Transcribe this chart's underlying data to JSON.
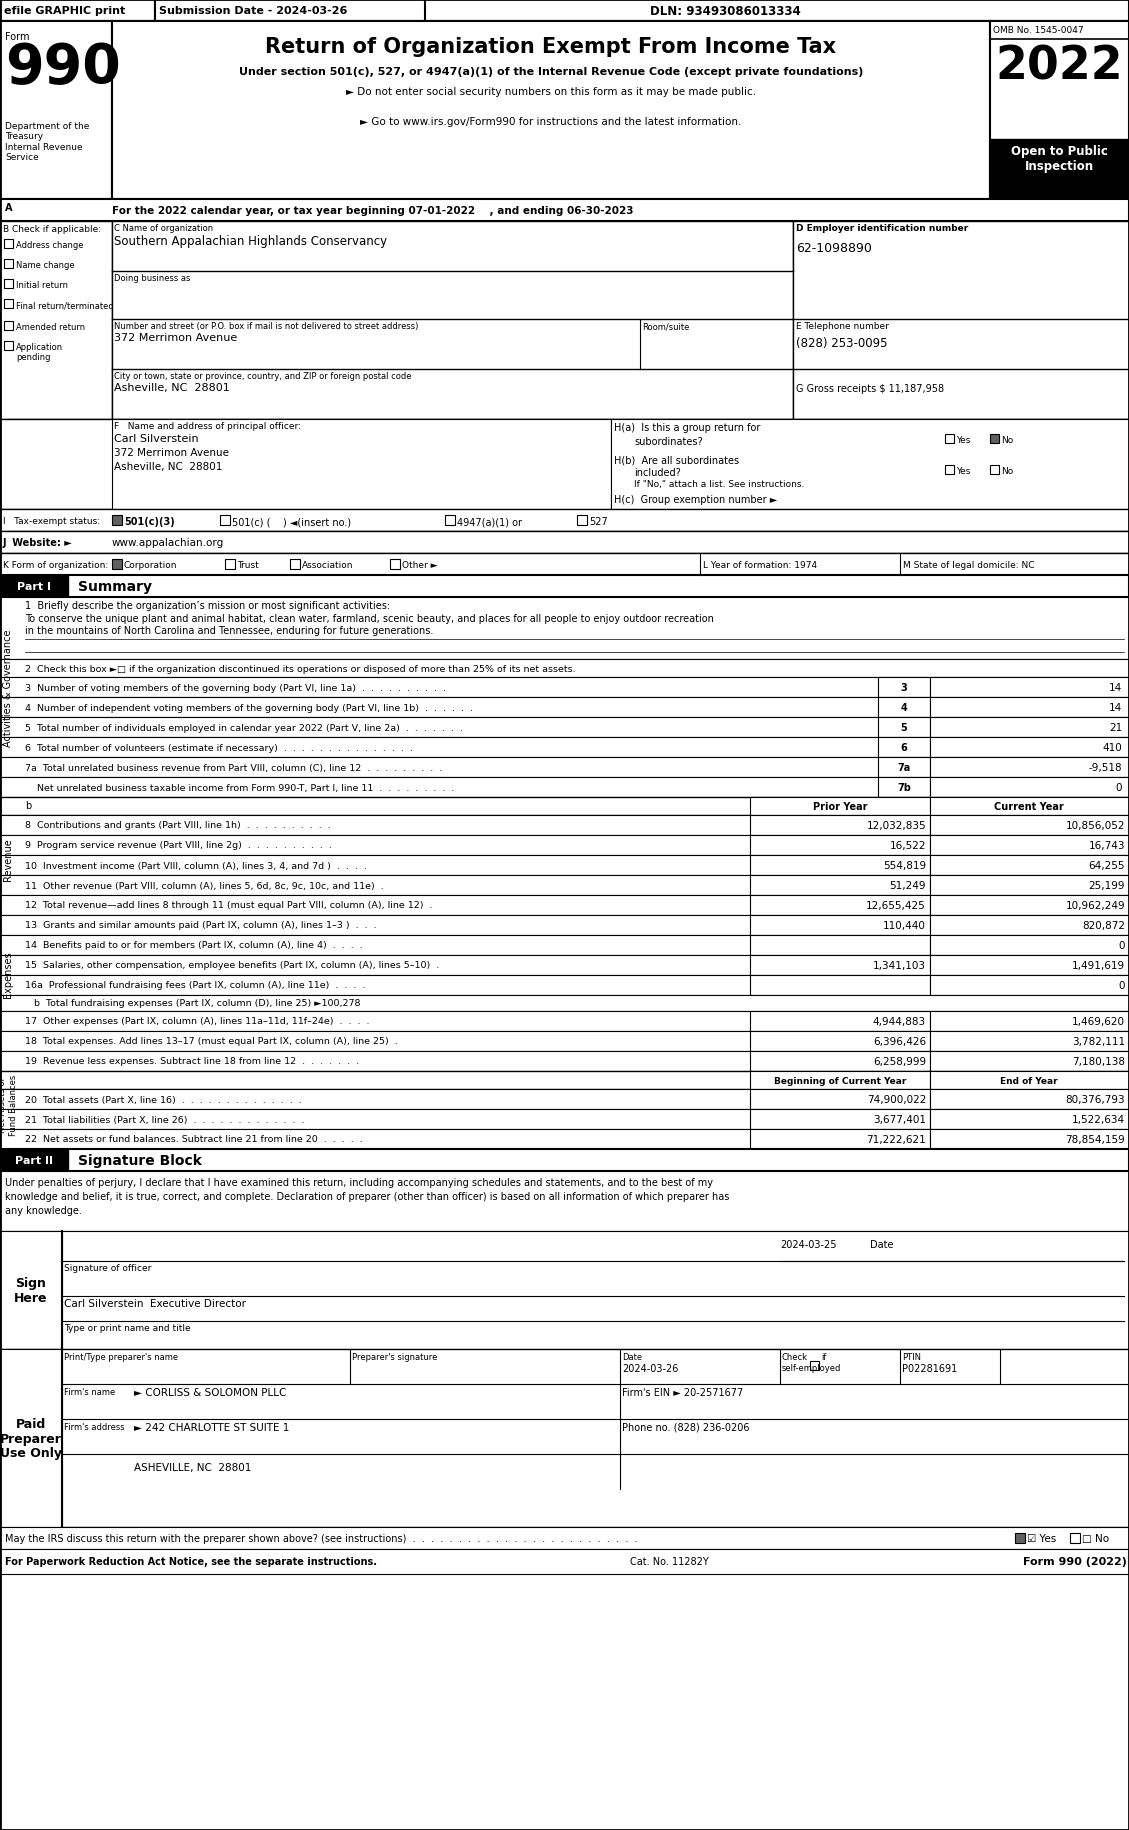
{
  "efile_text": "efile GRAPHIC print",
  "submission_date": "Submission Date - 2024-03-26",
  "dln": "DLN: 93493086013334",
  "omb": "OMB No. 1545-0047",
  "year": "2022",
  "open_to_public": "Open to Public\nInspection",
  "dept": "Department of the\nTreasury\nInternal Revenue\nService",
  "title_line": "Return of Organization Exempt From Income Tax",
  "subtitle1": "Under section 501(c), 527, or 4947(a)(1) of the Internal Revenue Code (except private foundations)",
  "subtitle2": "► Do not enter social security numbers on this form as it may be made public.",
  "subtitle3": "► Go to www.irs.gov/Form990 for instructions and the latest information.",
  "tax_year_line": "For the 2022 calendar year, or tax year beginning 07-01-2022    , and ending 06-30-2023",
  "section_a_label": "A",
  "section_b_label": "B Check if applicable:",
  "checkboxes_b": [
    "Address change",
    "Name change",
    "Initial return",
    "Final return/terminated",
    "Amended return",
    "Application\npending"
  ],
  "org_name_label": "C Name of organization",
  "org_name": "Southern Appalachian Highlands Conservancy",
  "dba_label": "Doing business as",
  "street_label": "Number and street (or P.O. box if mail is not delivered to street address)",
  "room_label": "Room/suite",
  "street": "372 Merrimon Avenue",
  "city_label": "City or town, state or province, country, and ZIP or foreign postal code",
  "city": "Asheville, NC  28801",
  "ein_label": "D Employer identification number",
  "ein": "62-1098890",
  "phone_label": "E Telephone number",
  "phone": "(828) 253-0095",
  "gross_label": "G Gross receipts $ 11,187,958",
  "principal_label": "F   Name and address of principal officer:",
  "principal_name": "Carl Silverstein",
  "principal_addr1": "372 Merrimon Avenue",
  "principal_addr2": "Asheville, NC  28801",
  "ha_label": "H(a)  Is this a group return for",
  "ha_sub": "subordinates?",
  "hb_label": "H(b)  Are all subordinates",
  "hb_sub": "included?",
  "hb_note": "If \"No,\" attach a list. See instructions.",
  "hc_label": "H(c)  Group exemption number ►",
  "tax_exempt_label": "I   Tax-exempt status:",
  "website_label": "J  Website: ►",
  "website": "www.appalachian.org",
  "form_org_label": "K Form of organization:",
  "year_formed_label": "L Year of formation: 1974",
  "state_label": "M State of legal domicile: NC",
  "line1_label": "1  Briefly describe the organization’s mission or most significant activities:",
  "mission1": "To conserve the unique plant and animal habitat, clean water, farmland, scenic beauty, and places for all people to enjoy outdoor recreation",
  "mission2": "in the mountains of North Carolina and Tennessee, enduring for future generations.",
  "line2_text": "2  Check this box ►□ if the organization discontinued its operations or disposed of more than 25% of its net assets.",
  "line3_text": "3  Number of voting members of the governing body (Part VI, line 1a)  .  .  .  .  .  .  .  .  .  .",
  "line3_num": "3",
  "line3_val": "14",
  "line4_text": "4  Number of independent voting members of the governing body (Part VI, line 1b)  .  .  .  .  .  .",
  "line4_num": "4",
  "line4_val": "14",
  "line5_text": "5  Total number of individuals employed in calendar year 2022 (Part V, line 2a)  .  .  .  .  .  .  .",
  "line5_num": "5",
  "line5_val": "21",
  "line6_text": "6  Total number of volunteers (estimate if necessary)  .  .  .  .  .  .  .  .  .  .  .  .  .  .  .",
  "line6_num": "6",
  "line6_val": "410",
  "line7a_text": "7a  Total unrelated business revenue from Part VIII, column (C), line 12  .  .  .  .  .  .  .  .  .",
  "line7a_num": "7a",
  "line7a_val": "-9,518",
  "line7b_text": "    Net unrelated business taxable income from Form 990-T, Part I, line 11  .  .  .  .  .  .  .  .  .",
  "line7b_num": "7b",
  "line7b_val": "0",
  "col_prior": "Prior Year",
  "col_current": "Current Year",
  "line8_text": "8  Contributions and grants (Part VIII, line 1h)  .  .  .  .  .  .  .  .  .  .",
  "line8_prior": "12,032,835",
  "line8_curr": "10,856,052",
  "line9_text": "9  Program service revenue (Part VIII, line 2g)  .  .  .  .  .  .  .  .  .  .",
  "line9_prior": "16,522",
  "line9_curr": "16,743",
  "line10_text": "10  Investment income (Part VIII, column (A), lines 3, 4, and 7d )  .  .  .  .",
  "line10_prior": "554,819",
  "line10_curr": "64,255",
  "line11_text": "11  Other revenue (Part VIII, column (A), lines 5, 6d, 8c, 9c, 10c, and 11e)  .",
  "line11_prior": "51,249",
  "line11_curr": "25,199",
  "line12_text": "12  Total revenue—add lines 8 through 11 (must equal Part VIII, column (A), line 12)  .",
  "line12_prior": "12,655,425",
  "line12_curr": "10,962,249",
  "line13_text": "13  Grants and similar amounts paid (Part IX, column (A), lines 1–3 )  .  .  .",
  "line13_prior": "110,440",
  "line13_curr": "820,872",
  "line14_text": "14  Benefits paid to or for members (Part IX, column (A), line 4)  .  .  .  .",
  "line14_prior": "",
  "line14_curr": "0",
  "line15_text": "15  Salaries, other compensation, employee benefits (Part IX, column (A), lines 5–10)  .",
  "line15_prior": "1,341,103",
  "line15_curr": "1,491,619",
  "line16a_text": "16a  Professional fundraising fees (Part IX, column (A), line 11e)  .  .  .  .",
  "line16a_prior": "",
  "line16a_curr": "0",
  "line16b_text": "   b  Total fundraising expenses (Part IX, column (D), line 25) ►100,278",
  "line17_text": "17  Other expenses (Part IX, column (A), lines 11a–11d, 11f–24e)  .  .  .  .",
  "line17_prior": "4,944,883",
  "line17_curr": "1,469,620",
  "line18_text": "18  Total expenses. Add lines 13–17 (must equal Part IX, column (A), line 25)  .",
  "line18_prior": "6,396,426",
  "line18_curr": "3,782,111",
  "line19_text": "19  Revenue less expenses. Subtract line 18 from line 12  .  .  .  .  .  .  .",
  "line19_prior": "6,258,999",
  "line19_curr": "7,180,138",
  "col_beg": "Beginning of Current Year",
  "col_end": "End of Year",
  "line20_text": "20  Total assets (Part X, line 16)  .  .  .  .  .  .  .  .  .  .  .  .  .  .",
  "line20_beg": "74,900,022",
  "line20_end": "80,376,793",
  "line21_text": "21  Total liabilities (Part X, line 26)  .  .  .  .  .  .  .  .  .  .  .  .  .",
  "line21_beg": "3,677,401",
  "line21_end": "1,522,634",
  "line22_text": "22  Net assets or fund balances. Subtract line 21 from line 20  .  .  .  .  .",
  "line22_beg": "71,222,621",
  "line22_end": "78,854,159",
  "sig_text1": "Under penalties of perjury, I declare that I have examined this return, including accompanying schedules and statements, and to the best of my",
  "sig_text2": "knowledge and belief, it is true, correct, and complete. Declaration of preparer (other than officer) is based on all information of which preparer has",
  "sig_text3": "any knowledge.",
  "sign_here_label": "Sign\nHere",
  "sig_officer_label": "Signature of officer",
  "sig_date_val": "2024-03-25",
  "sig_date_label": "Date",
  "sig_name": "Carl Silverstein  Executive Director",
  "sig_title_label": "Type or print name and title",
  "paid_preparer_label": "Paid\nPreparer\nUse Only",
  "preparer_name_label": "Print/Type preparer's name",
  "preparer_sig_label": "Preparer's signature",
  "preparer_date_label": "Date",
  "preparer_check_label": "Check",
  "preparer_se_label": "if\nself-employed",
  "preparer_ptin_label": "PTIN",
  "preparer_date_val": "2024-03-26",
  "preparer_ptin_val": "P02281691",
  "firm_name_label": "Firm's name",
  "firm_name_val": "► CORLISS & SOLOMON PLLC",
  "firm_ein_label": "Firm's EIN ►",
  "firm_ein_val": "20-2571677",
  "firm_addr_label": "Firm's address",
  "firm_addr_val": "► 242 CHARLOTTE ST SUITE 1",
  "firm_city_val": "ASHEVILLE, NC  28801",
  "firm_phone_label": "Phone no. (828) 236-0206",
  "discuss_text": "May the IRS discuss this return with the preparer shown above? (see instructions)  .  .  .  .  .  .  .  .  .  .  .  .  .  .  .  .  .  .  .  .  .  .  .  .  .",
  "discuss_yes": "☑ Yes",
  "discuss_no": "□ No",
  "paperwork_text": "For Paperwork Reduction Act Notice, see the separate instructions.",
  "cat_no": "Cat. No. 11282Y",
  "form_footer": "Form 990 (2022)"
}
